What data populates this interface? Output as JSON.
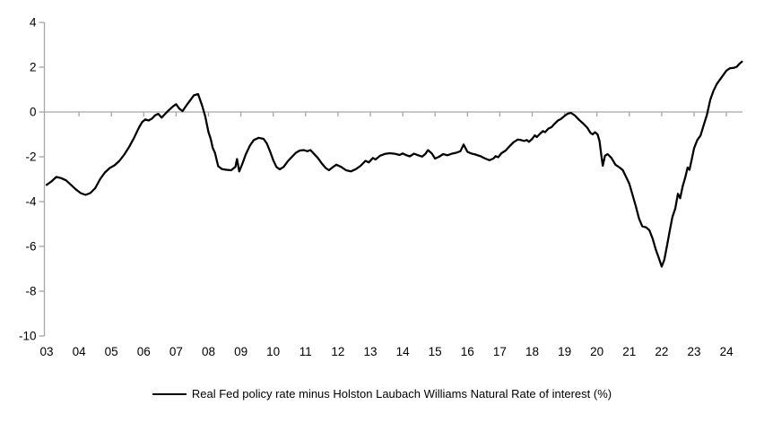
{
  "chart_data": {
    "type": "line",
    "title": "",
    "legend": "Real Fed policy rate minus Holston Laubach Williams Natural Rate of interest (%)",
    "xlabel": "",
    "ylabel": "",
    "x_min": 2003,
    "x_max": 2024.5,
    "ylim": [
      -10,
      4
    ],
    "grid": "zero-line-only",
    "legend_position": "bottom-center",
    "line_color": "#000000",
    "axis_color": "#A6A6A6",
    "text_color": "#000000",
    "y_ticks": [
      "4",
      "2",
      "0",
      "-2",
      "-4",
      "-6",
      "-8",
      "-10"
    ],
    "y_tick_values": [
      4,
      2,
      0,
      -2,
      -4,
      -6,
      -8,
      -10
    ],
    "x_tick_labels": [
      "03",
      "04",
      "05",
      "06",
      "07",
      "08",
      "09",
      "10",
      "11",
      "12",
      "13",
      "14",
      "15",
      "16",
      "17",
      "18",
      "19",
      "20",
      "21",
      "22",
      "23",
      "24"
    ],
    "x_tick_years": [
      2003,
      2004,
      2005,
      2006,
      2007,
      2008,
      2009,
      2010,
      2011,
      2012,
      2013,
      2014,
      2015,
      2016,
      2017,
      2018,
      2019,
      2020,
      2021,
      2022,
      2023,
      2024
    ],
    "series": [
      {
        "name": "Real Fed policy rate minus Holston Laubach Williams Natural Rate of interest (%)",
        "points": [
          [
            2003.0,
            -3.25
          ],
          [
            2003.15,
            -3.1
          ],
          [
            2003.3,
            -2.9
          ],
          [
            2003.45,
            -2.95
          ],
          [
            2003.6,
            -3.05
          ],
          [
            2003.75,
            -3.25
          ],
          [
            2003.9,
            -3.45
          ],
          [
            2004.05,
            -3.62
          ],
          [
            2004.2,
            -3.7
          ],
          [
            2004.35,
            -3.62
          ],
          [
            2004.5,
            -3.4
          ],
          [
            2004.65,
            -3.0
          ],
          [
            2004.8,
            -2.7
          ],
          [
            2004.95,
            -2.5
          ],
          [
            2005.1,
            -2.38
          ],
          [
            2005.25,
            -2.18
          ],
          [
            2005.4,
            -1.9
          ],
          [
            2005.55,
            -1.55
          ],
          [
            2005.7,
            -1.15
          ],
          [
            2005.85,
            -0.7
          ],
          [
            2005.95,
            -0.45
          ],
          [
            2006.05,
            -0.33
          ],
          [
            2006.15,
            -0.38
          ],
          [
            2006.25,
            -0.3
          ],
          [
            2006.35,
            -0.15
          ],
          [
            2006.45,
            -0.08
          ],
          [
            2006.55,
            -0.25
          ],
          [
            2006.65,
            -0.1
          ],
          [
            2006.75,
            0.05
          ],
          [
            2006.9,
            0.25
          ],
          [
            2007.0,
            0.35
          ],
          [
            2007.1,
            0.15
          ],
          [
            2007.2,
            0.04
          ],
          [
            2007.32,
            0.3
          ],
          [
            2007.45,
            0.55
          ],
          [
            2007.55,
            0.75
          ],
          [
            2007.68,
            0.8
          ],
          [
            2007.8,
            0.3
          ],
          [
            2007.9,
            -0.2
          ],
          [
            2008.0,
            -0.9
          ],
          [
            2008.07,
            -1.2
          ],
          [
            2008.13,
            -1.6
          ],
          [
            2008.2,
            -1.82
          ],
          [
            2008.3,
            -2.42
          ],
          [
            2008.42,
            -2.55
          ],
          [
            2008.55,
            -2.58
          ],
          [
            2008.7,
            -2.6
          ],
          [
            2008.83,
            -2.45
          ],
          [
            2008.88,
            -2.1
          ],
          [
            2008.95,
            -2.65
          ],
          [
            2009.05,
            -2.3
          ],
          [
            2009.15,
            -1.9
          ],
          [
            2009.28,
            -1.5
          ],
          [
            2009.4,
            -1.25
          ],
          [
            2009.55,
            -1.15
          ],
          [
            2009.7,
            -1.2
          ],
          [
            2009.8,
            -1.4
          ],
          [
            2009.9,
            -1.75
          ],
          [
            2010.0,
            -2.15
          ],
          [
            2010.1,
            -2.45
          ],
          [
            2010.2,
            -2.56
          ],
          [
            2010.32,
            -2.45
          ],
          [
            2010.45,
            -2.2
          ],
          [
            2010.58,
            -2.0
          ],
          [
            2010.7,
            -1.82
          ],
          [
            2010.82,
            -1.72
          ],
          [
            2010.95,
            -1.7
          ],
          [
            2011.05,
            -1.75
          ],
          [
            2011.15,
            -1.7
          ],
          [
            2011.25,
            -1.85
          ],
          [
            2011.38,
            -2.05
          ],
          [
            2011.5,
            -2.3
          ],
          [
            2011.62,
            -2.5
          ],
          [
            2011.72,
            -2.6
          ],
          [
            2011.85,
            -2.45
          ],
          [
            2011.95,
            -2.35
          ],
          [
            2012.1,
            -2.45
          ],
          [
            2012.25,
            -2.6
          ],
          [
            2012.4,
            -2.65
          ],
          [
            2012.55,
            -2.55
          ],
          [
            2012.7,
            -2.4
          ],
          [
            2012.85,
            -2.18
          ],
          [
            2012.95,
            -2.25
          ],
          [
            2013.08,
            -2.05
          ],
          [
            2013.16,
            -2.12
          ],
          [
            2013.3,
            -1.95
          ],
          [
            2013.45,
            -1.87
          ],
          [
            2013.6,
            -1.84
          ],
          [
            2013.78,
            -1.87
          ],
          [
            2013.9,
            -1.92
          ],
          [
            2014.0,
            -1.85
          ],
          [
            2014.12,
            -1.93
          ],
          [
            2014.22,
            -1.98
          ],
          [
            2014.35,
            -1.86
          ],
          [
            2014.48,
            -1.93
          ],
          [
            2014.6,
            -1.99
          ],
          [
            2014.7,
            -1.87
          ],
          [
            2014.78,
            -1.7
          ],
          [
            2014.9,
            -1.85
          ],
          [
            2015.0,
            -2.08
          ],
          [
            2015.12,
            -2.0
          ],
          [
            2015.25,
            -1.88
          ],
          [
            2015.38,
            -1.93
          ],
          [
            2015.52,
            -1.86
          ],
          [
            2015.65,
            -1.82
          ],
          [
            2015.78,
            -1.75
          ],
          [
            2015.88,
            -1.45
          ],
          [
            2016.0,
            -1.78
          ],
          [
            2016.12,
            -1.85
          ],
          [
            2016.25,
            -1.9
          ],
          [
            2016.4,
            -1.97
          ],
          [
            2016.55,
            -2.08
          ],
          [
            2016.68,
            -2.15
          ],
          [
            2016.8,
            -2.08
          ],
          [
            2016.87,
            -1.97
          ],
          [
            2016.95,
            -2.02
          ],
          [
            2017.05,
            -1.84
          ],
          [
            2017.18,
            -1.72
          ],
          [
            2017.3,
            -1.53
          ],
          [
            2017.42,
            -1.35
          ],
          [
            2017.55,
            -1.23
          ],
          [
            2017.65,
            -1.25
          ],
          [
            2017.75,
            -1.29
          ],
          [
            2017.83,
            -1.25
          ],
          [
            2017.9,
            -1.33
          ],
          [
            2018.0,
            -1.2
          ],
          [
            2018.08,
            -1.04
          ],
          [
            2018.14,
            -1.12
          ],
          [
            2018.25,
            -0.96
          ],
          [
            2018.33,
            -0.85
          ],
          [
            2018.4,
            -0.9
          ],
          [
            2018.5,
            -0.74
          ],
          [
            2018.6,
            -0.67
          ],
          [
            2018.7,
            -0.51
          ],
          [
            2018.8,
            -0.37
          ],
          [
            2018.88,
            -0.32
          ],
          [
            2019.0,
            -0.17
          ],
          [
            2019.1,
            -0.07
          ],
          [
            2019.2,
            -0.04
          ],
          [
            2019.32,
            -0.16
          ],
          [
            2019.45,
            -0.35
          ],
          [
            2019.58,
            -0.52
          ],
          [
            2019.7,
            -0.7
          ],
          [
            2019.8,
            -0.93
          ],
          [
            2019.87,
            -1.0
          ],
          [
            2019.94,
            -0.9
          ],
          [
            2020.02,
            -1.0
          ],
          [
            2020.08,
            -1.3
          ],
          [
            2020.14,
            -2.0
          ],
          [
            2020.18,
            -2.4
          ],
          [
            2020.25,
            -1.95
          ],
          [
            2020.33,
            -1.88
          ],
          [
            2020.45,
            -2.05
          ],
          [
            2020.57,
            -2.35
          ],
          [
            2020.7,
            -2.48
          ],
          [
            2020.8,
            -2.6
          ],
          [
            2020.9,
            -2.9
          ],
          [
            2021.0,
            -3.2
          ],
          [
            2021.1,
            -3.7
          ],
          [
            2021.2,
            -4.2
          ],
          [
            2021.3,
            -4.75
          ],
          [
            2021.4,
            -5.1
          ],
          [
            2021.52,
            -5.15
          ],
          [
            2021.62,
            -5.28
          ],
          [
            2021.72,
            -5.65
          ],
          [
            2021.82,
            -6.15
          ],
          [
            2021.92,
            -6.55
          ],
          [
            2022.0,
            -6.9
          ],
          [
            2022.08,
            -6.6
          ],
          [
            2022.16,
            -6.0
          ],
          [
            2022.25,
            -5.3
          ],
          [
            2022.33,
            -4.7
          ],
          [
            2022.42,
            -4.3
          ],
          [
            2022.5,
            -3.65
          ],
          [
            2022.57,
            -3.85
          ],
          [
            2022.65,
            -3.3
          ],
          [
            2022.73,
            -2.9
          ],
          [
            2022.8,
            -2.48
          ],
          [
            2022.86,
            -2.58
          ],
          [
            2022.93,
            -2.1
          ],
          [
            2023.0,
            -1.62
          ],
          [
            2023.1,
            -1.25
          ],
          [
            2023.2,
            -1.05
          ],
          [
            2023.3,
            -0.58
          ],
          [
            2023.4,
            -0.12
          ],
          [
            2023.5,
            0.55
          ],
          [
            2023.6,
            0.95
          ],
          [
            2023.7,
            1.25
          ],
          [
            2023.8,
            1.45
          ],
          [
            2023.9,
            1.65
          ],
          [
            2024.0,
            1.85
          ],
          [
            2024.1,
            1.95
          ],
          [
            2024.22,
            1.97
          ],
          [
            2024.32,
            2.02
          ],
          [
            2024.4,
            2.15
          ],
          [
            2024.48,
            2.25
          ]
        ]
      }
    ]
  }
}
